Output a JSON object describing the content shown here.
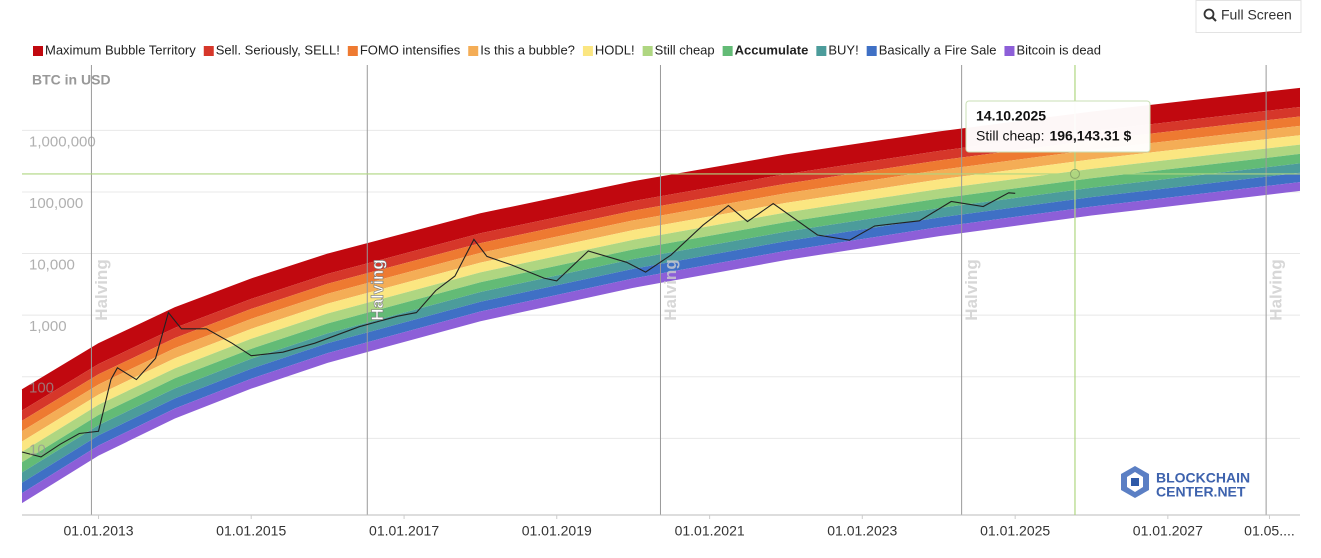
{
  "chart_data": {
    "type": "rainbow",
    "y_axis_title": "BTC in USD",
    "log_scale": true,
    "grid": true,
    "ylim": [
      0.57,
      11500000
    ],
    "yticks": [
      10,
      100,
      {
        "value": 1000,
        "label": "1,000"
      },
      {
        "value": 10000,
        "label": "10,000"
      },
      {
        "value": 100000,
        "label": "100,000"
      },
      {
        "value": 1000000,
        "label": "1,000,000"
      }
    ],
    "xlim": [
      "2012-01-01",
      "2028-09-24"
    ],
    "xticks": [
      {
        "value": "2013-01-01",
        "label": "01.01.2013"
      },
      {
        "value": "2015-01-01",
        "label": "01.01.2015"
      },
      {
        "value": "2017-01-01",
        "label": "01.01.2017"
      },
      {
        "value": "2019-01-01",
        "label": "01.01.2019"
      },
      {
        "value": "2021-01-01",
        "label": "01.01.2021"
      },
      {
        "value": "2023-01-01",
        "label": "01.01.2023"
      },
      {
        "value": "2025-01-01",
        "label": "01.01.2025"
      },
      {
        "value": "2027-01-01",
        "label": "01.01.2027"
      },
      {
        "value": "2028-05-01",
        "label": "01.05...."
      }
    ],
    "band_x": [
      "2012-01-01",
      "2013-01-01",
      "2014-01-01",
      "2015-01-01",
      "2016-01-01",
      "2018-01-01",
      "2020-01-01",
      "2022-01-01",
      "2024-01-01",
      "2026-01-01",
      "2028-09-24"
    ],
    "series": [
      {
        "name": "Maximum Bubble Territory",
        "color": "#c1080f",
        "values": [
          28.3,
          161,
          621,
          1837,
          4667,
          21330,
          71120,
          195000,
          461300,
          975000,
          2388000
        ]
      },
      {
        "name": "Sell. Seriously, SELL!",
        "color": "#d6372a",
        "values": [
          19.3,
          110,
          426,
          1265,
          3228,
          14790,
          49550,
          136100,
          323600,
          685500,
          1679000
        ]
      },
      {
        "name": "FOMO intensifies",
        "color": "#ee7a31",
        "values": [
          13.1,
          75.0,
          292,
          871,
          2228,
          10260,
          34510,
          95060,
          226500,
          480800,
          1183000
        ]
      },
      {
        "name": "Is this a bubble?",
        "color": "#f4ad56",
        "values": [
          8.89,
          51.3,
          200,
          600,
          1538,
          7129,
          24040,
          66530,
          158900,
          338100,
          833700
        ]
      },
      {
        "name": "HODL!",
        "color": "#fbe681",
        "values": [
          6.04,
          35.1,
          137,
          413,
          1062,
          4943,
          16710,
          46450,
          111200,
          237100,
          587500
        ]
      },
      {
        "name": "Still cheap",
        "color": "#afd681",
        "values": [
          4.1,
          23.9,
          94.4,
          284,
          733,
          3428,
          11640,
          32430,
          77980,
          166700,
          414000
        ]
      },
      {
        "name": "Accumulate",
        "color": "#63bb76",
        "emphasis": true,
        "values": [
          2.79,
          16.4,
          64.7,
          196,
          507,
          2377,
          8110,
          22650,
          54580,
          116900,
          291100
        ]
      },
      {
        "name": "BUY!",
        "color": "#4c9c9b",
        "values": [
          1.9,
          11.2,
          44.5,
          135,
          350,
          1652,
          5649,
          15850,
          38280,
          82220,
          205100
        ]
      },
      {
        "name": "Basically a Fire Sale",
        "color": "#3f70c5",
        "values": [
          1.29,
          7.64,
          30.5,
          92.9,
          242,
          1146,
          3936,
          11070,
          26790,
          57680,
          144500
        ]
      },
      {
        "name": "Bitcoin is dead",
        "color": "#8d5fd8",
        "values": [
          0.89,
          5.24,
          21.0,
          64.1,
          168,
          798,
          2770,
          7840,
          19100,
          41400,
          104000
        ]
      }
    ],
    "band_top": [
      61.4,
      344,
      1318,
      3873,
      9795,
      44260,
      146600,
      399000,
      939700,
      1977000,
      4808000
    ],
    "price": {
      "color": "#222222",
      "x": [
        "2012-01",
        "2012-04",
        "2012-07",
        "2012-10",
        "2013-01",
        "2013-03",
        "2013-04",
        "2013-07",
        "2013-10",
        "2013-12",
        "2014-02",
        "2014-06",
        "2014-10",
        "2015-01",
        "2015-06",
        "2015-11",
        "2016-06",
        "2016-12",
        "2017-03",
        "2017-06",
        "2017-09",
        "2017-12",
        "2018-02",
        "2018-06",
        "2018-11",
        "2019-01",
        "2019-06",
        "2019-12",
        "2020-03",
        "2020-07",
        "2020-12",
        "2021-04",
        "2021-07",
        "2021-11",
        "2022-06",
        "2022-11",
        "2023-03",
        "2023-10",
        "2024-03",
        "2024-08",
        "2024-12",
        "2025-01"
      ],
      "values": [
        6,
        5,
        8,
        12,
        13,
        90,
        140,
        90,
        200,
        1100,
        600,
        600,
        350,
        220,
        250,
        350,
        650,
        960,
        1100,
        2500,
        4300,
        17000,
        9000,
        6500,
        4000,
        3600,
        11000,
        7200,
        5000,
        9500,
        29000,
        60000,
        33000,
        65000,
        20000,
        16500,
        28000,
        34000,
        70000,
        58000,
        97000,
        95000
      ]
    },
    "halvings": [
      {
        "label": "Halving",
        "x": "2012-11-28"
      },
      {
        "label": "Halving",
        "x": "2016-07-09",
        "highlight": true
      },
      {
        "label": "Halving",
        "x": "2020-05-11"
      },
      {
        "label": "Halving",
        "x": "2024-04-20"
      },
      {
        "label": "Halving",
        "x": "2028-04-15"
      }
    ],
    "tooltip": {
      "date": "14.10.2025",
      "label": "Still cheap:",
      "value": 196143.31,
      "value_label": "196,143.31 $",
      "color": "#afd681"
    }
  },
  "ui": {
    "button": "Full Screen",
    "logo": [
      "BLOCKCHAIN",
      "CENTER.NET"
    ]
  }
}
